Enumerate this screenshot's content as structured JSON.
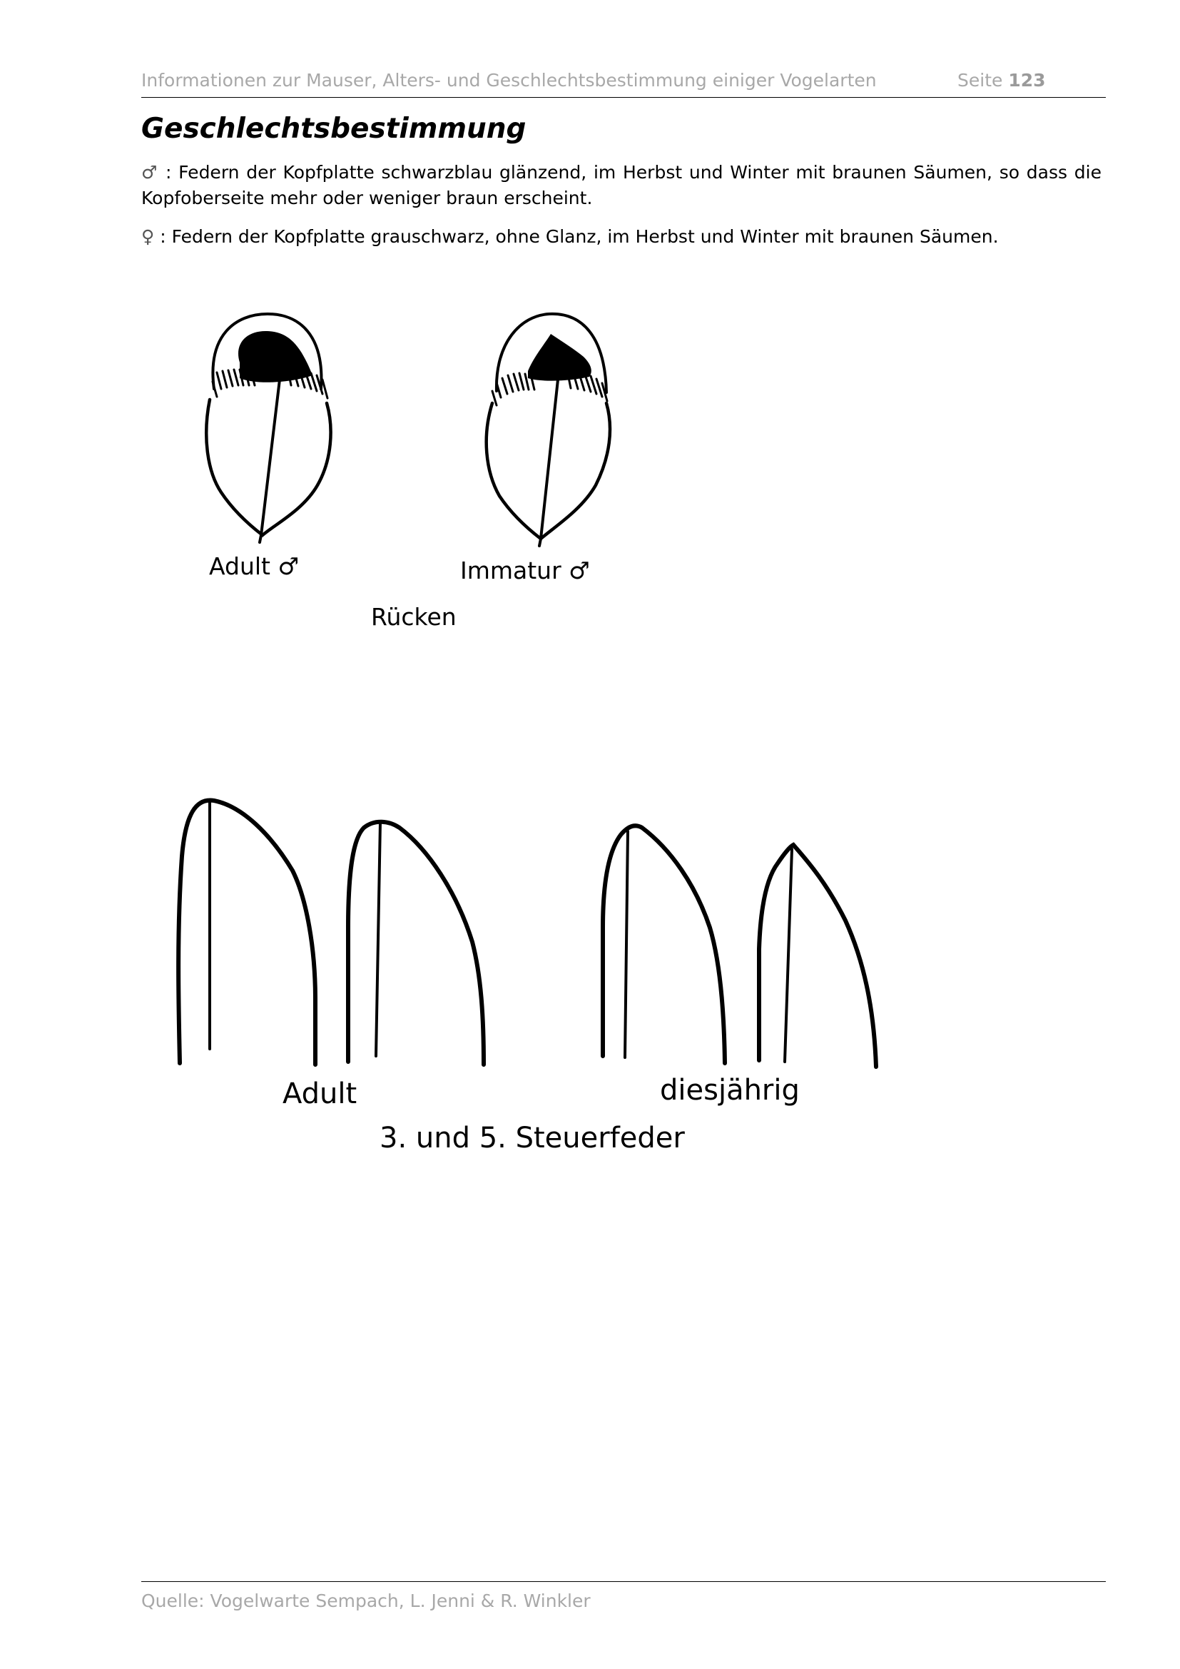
{
  "header": {
    "title": "Informationen zur Mauser, Alters- und Geschlechtsbestimmung einiger Vogelarten",
    "page_label": "Seite",
    "page_number": "123"
  },
  "section": {
    "title": "Geschlechtsbestimmung"
  },
  "paragraphs": {
    "male_symbol": "♂",
    "male_text": " : Federn der Kopfplatte schwarzblau glänzend, im Herbst und Winter mit braunen Säumen, so dass die Kopfoberseite mehr oder weniger braun erscheint.",
    "female_symbol": "♀",
    "female_text": " : Federn der Kopfplatte grauschwarz, ohne Glanz, im Herbst und Winter mit braunen Säumen."
  },
  "figure_back": {
    "label_adult": "Adult ♂",
    "label_immature": "Immatur ♂",
    "caption": "Rücken"
  },
  "figure_tail": {
    "label_adult": "Adult",
    "label_first_year": "diesjährig",
    "caption": "3. und 5. Steuerfeder"
  },
  "footer": {
    "source": "Quelle: Vogelwarte Sempach, L. Jenni & R. Winkler"
  }
}
